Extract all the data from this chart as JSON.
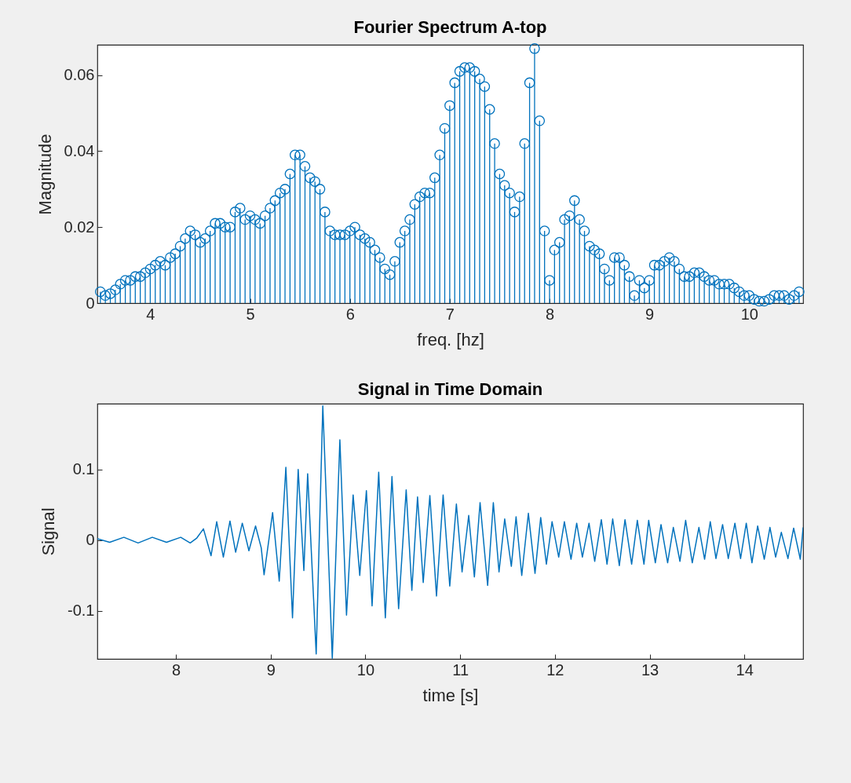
{
  "chart_data": [
    {
      "type": "lollipop",
      "title": "Fourier Spectrum A-top",
      "xlabel": "freq. [hz]",
      "ylabel": "Magnitude",
      "color": "#0072bd",
      "marker": "circle",
      "xlim": [
        3.47,
        10.54
      ],
      "ylim": [
        0,
        0.068
      ],
      "xticks": [
        4,
        5,
        6,
        7,
        8,
        9,
        10
      ],
      "yticks": [
        0,
        0.02,
        0.04,
        0.06
      ],
      "x": [
        3.5,
        3.55,
        3.6,
        3.65,
        3.7,
        3.75,
        3.8,
        3.85,
        3.9,
        3.95,
        4.0,
        4.05,
        4.1,
        4.15,
        4.2,
        4.25,
        4.3,
        4.35,
        4.4,
        4.45,
        4.5,
        4.55,
        4.6,
        4.65,
        4.7,
        4.75,
        4.8,
        4.85,
        4.9,
        4.95,
        5.0,
        5.05,
        5.1,
        5.15,
        5.2,
        5.25,
        5.3,
        5.35,
        5.4,
        5.45,
        5.5,
        5.55,
        5.6,
        5.65,
        5.7,
        5.75,
        5.8,
        5.85,
        5.9,
        5.95,
        6.0,
        6.05,
        6.1,
        6.15,
        6.2,
        6.25,
        6.3,
        6.35,
        6.4,
        6.45,
        6.5,
        6.55,
        6.6,
        6.65,
        6.7,
        6.75,
        6.8,
        6.85,
        6.9,
        6.95,
        7.0,
        7.05,
        7.1,
        7.15,
        7.2,
        7.25,
        7.3,
        7.35,
        7.4,
        7.45,
        7.5,
        7.55,
        7.6,
        7.65,
        7.7,
        7.75,
        7.8,
        7.85,
        7.9,
        7.95,
        8.0,
        8.05,
        8.1,
        8.15,
        8.2,
        8.25,
        8.3,
        8.35,
        8.4,
        8.45,
        8.5,
        8.55,
        8.6,
        8.65,
        8.7,
        8.75,
        8.8,
        8.85,
        8.9,
        8.95,
        9.0,
        9.05,
        9.1,
        9.15,
        9.2,
        9.25,
        9.3,
        9.35,
        9.4,
        9.45,
        9.5,
        9.55,
        9.6,
        9.65,
        9.7,
        9.75,
        9.8,
        9.85,
        9.9,
        9.95,
        10.0,
        10.05,
        10.1,
        10.15,
        10.2,
        10.25,
        10.3,
        10.35,
        10.4,
        10.45,
        10.5
      ],
      "values": [
        0.003,
        0.002,
        0.0025,
        0.0035,
        0.005,
        0.006,
        0.006,
        0.007,
        0.007,
        0.008,
        0.009,
        0.01,
        0.011,
        0.01,
        0.012,
        0.013,
        0.015,
        0.017,
        0.019,
        0.018,
        0.016,
        0.017,
        0.019,
        0.021,
        0.021,
        0.02,
        0.02,
        0.024,
        0.025,
        0.022,
        0.023,
        0.022,
        0.021,
        0.023,
        0.025,
        0.027,
        0.029,
        0.03,
        0.034,
        0.039,
        0.039,
        0.036,
        0.033,
        0.032,
        0.03,
        0.024,
        0.019,
        0.018,
        0.018,
        0.018,
        0.019,
        0.02,
        0.018,
        0.017,
        0.016,
        0.014,
        0.012,
        0.009,
        0.0075,
        0.011,
        0.016,
        0.019,
        0.022,
        0.026,
        0.028,
        0.029,
        0.029,
        0.033,
        0.039,
        0.046,
        0.052,
        0.058,
        0.061,
        0.062,
        0.062,
        0.061,
        0.059,
        0.057,
        0.051,
        0.042,
        0.034,
        0.031,
        0.029,
        0.024,
        0.028,
        0.042,
        0.058,
        0.067,
        0.048,
        0.019,
        0.006,
        0.014,
        0.016,
        0.022,
        0.023,
        0.027,
        0.022,
        0.019,
        0.015,
        0.014,
        0.013,
        0.009,
        0.006,
        0.012,
        0.012,
        0.01,
        0.007,
        0.002,
        0.006,
        0.004,
        0.006,
        0.01,
        0.01,
        0.011,
        0.012,
        0.011,
        0.009,
        0.007,
        0.007,
        0.008,
        0.008,
        0.007,
        0.006,
        0.006,
        0.005,
        0.005,
        0.005,
        0.004,
        0.003,
        0.002,
        0.002,
        0.001,
        0.0005,
        0.0005,
        0.001,
        0.002,
        0.002,
        0.002,
        0.001,
        0.002,
        0.003
      ]
    },
    {
      "type": "line",
      "title": "Signal in Time Domain",
      "xlabel": "time [s]",
      "ylabel": "Signal",
      "color": "#0072bd",
      "xlim": [
        7.17,
        14.62
      ],
      "ylim": [
        -0.168,
        0.193
      ],
      "xticks": [
        8,
        9,
        10,
        11,
        12,
        13,
        14
      ],
      "yticks": [
        -0.1,
        0,
        0.1
      ],
      "x": [
        7.17,
        7.3,
        7.45,
        7.6,
        7.75,
        7.9,
        8.05,
        8.15,
        8.22,
        8.29,
        8.37,
        8.43,
        8.5,
        8.57,
        8.63,
        8.7,
        8.77,
        8.84,
        8.9,
        8.93,
        9.02,
        9.09,
        9.16,
        9.23,
        9.29,
        9.35,
        9.39,
        9.48,
        9.55,
        9.65,
        9.73,
        9.8,
        9.87,
        9.94,
        10.01,
        10.07,
        10.14,
        10.21,
        10.28,
        10.35,
        10.43,
        10.49,
        10.55,
        10.61,
        10.68,
        10.75,
        10.82,
        10.89,
        10.96,
        11.02,
        11.09,
        11.15,
        11.21,
        11.29,
        11.35,
        11.41,
        11.47,
        11.54,
        11.59,
        11.65,
        11.72,
        11.79,
        11.85,
        11.91,
        11.97,
        12.04,
        12.1,
        12.17,
        12.23,
        12.29,
        12.36,
        12.42,
        12.49,
        12.55,
        12.61,
        12.68,
        12.74,
        12.81,
        12.87,
        12.94,
        12.99,
        13.06,
        13.12,
        13.19,
        13.25,
        13.32,
        13.38,
        13.45,
        13.52,
        13.58,
        13.64,
        13.7,
        13.77,
        13.83,
        13.9,
        13.96,
        14.02,
        14.08,
        14.14,
        14.21,
        14.27,
        14.33,
        14.39,
        14.46,
        14.52,
        14.59,
        14.62
      ],
      "values": [
        0.002,
        -0.003,
        0.004,
        -0.004,
        0.004,
        -0.003,
        0.004,
        -0.004,
        0.003,
        0.016,
        -0.022,
        0.026,
        -0.024,
        0.027,
        -0.017,
        0.024,
        -0.015,
        0.02,
        -0.011,
        -0.049,
        0.039,
        -0.058,
        0.103,
        -0.11,
        0.1,
        -0.043,
        0.094,
        -0.161,
        0.19,
        -0.167,
        0.142,
        -0.106,
        0.064,
        -0.05,
        0.07,
        -0.093,
        0.096,
        -0.11,
        0.09,
        -0.097,
        0.071,
        -0.071,
        0.061,
        -0.06,
        0.063,
        -0.079,
        0.064,
        -0.065,
        0.051,
        -0.045,
        0.035,
        -0.052,
        0.053,
        -0.064,
        0.053,
        -0.045,
        0.03,
        -0.037,
        0.033,
        -0.05,
        0.038,
        -0.047,
        0.032,
        -0.034,
        0.026,
        -0.024,
        0.026,
        -0.027,
        0.024,
        -0.024,
        0.024,
        -0.03,
        0.029,
        -0.034,
        0.03,
        -0.036,
        0.029,
        -0.034,
        0.028,
        -0.034,
        0.028,
        -0.032,
        0.022,
        -0.032,
        0.018,
        -0.03,
        0.028,
        -0.032,
        0.018,
        -0.027,
        0.026,
        -0.026,
        0.022,
        -0.026,
        0.024,
        -0.026,
        0.024,
        -0.032,
        0.02,
        -0.027,
        0.018,
        -0.024,
        0.011,
        -0.026,
        0.017,
        -0.027,
        0.018
      ]
    }
  ]
}
